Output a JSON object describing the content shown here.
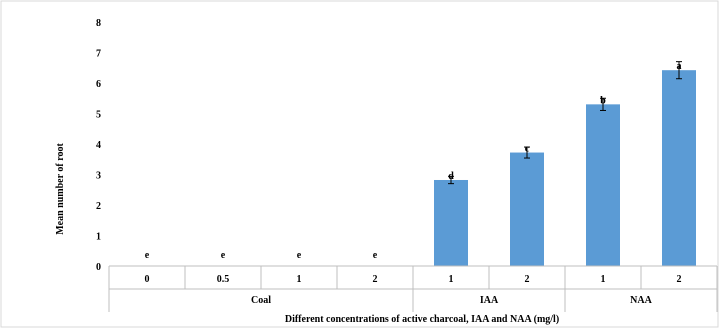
{
  "chart_data": {
    "type": "bar",
    "title": "",
    "xlabel": "Different concentrations of active charcoal, IAA and NAA (mg/l)",
    "ylabel": "Mean number of root",
    "ylim": [
      0,
      8
    ],
    "yticks": [
      "0",
      "1",
      "2",
      "3",
      "4",
      "5",
      "6",
      "7",
      "8"
    ],
    "grid": false,
    "bar_color": "#5b9bd5",
    "groups": [
      {
        "label": "Coal",
        "span": 4
      },
      {
        "label": "IAA",
        "span": 2
      },
      {
        "label": "NAA",
        "span": 2
      }
    ],
    "categories": [
      "0",
      "0.5",
      "1",
      "2",
      "1",
      "2",
      "1",
      "2"
    ],
    "values": [
      0,
      0,
      0,
      0,
      2.82,
      3.72,
      5.3,
      6.42
    ],
    "errors": [
      0,
      0,
      0,
      0,
      0.12,
      0.18,
      0.2,
      0.28
    ],
    "letters": [
      "e",
      "e",
      "e",
      "e",
      "d",
      "c",
      "b",
      "a"
    ]
  }
}
